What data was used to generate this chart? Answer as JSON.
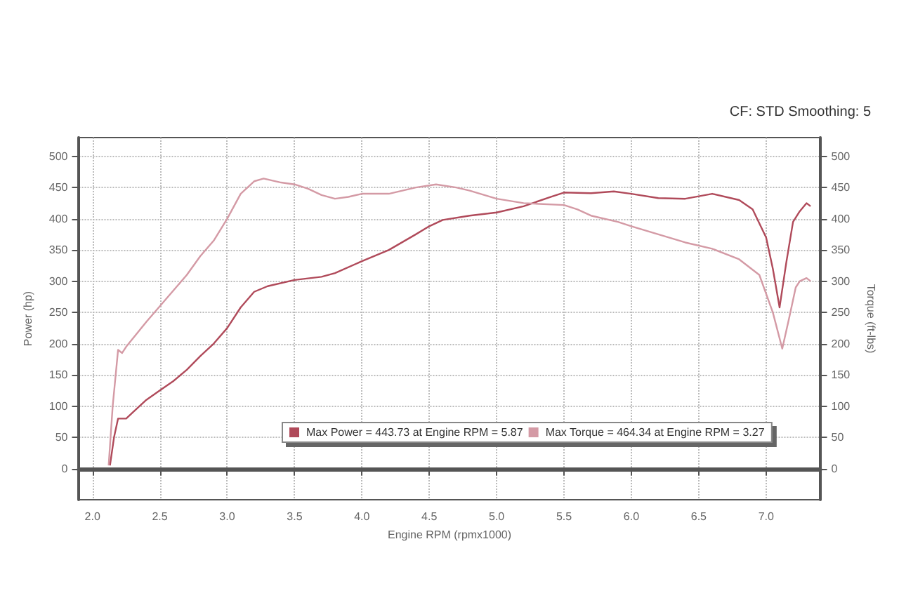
{
  "chart_data": {
    "type": "line",
    "xlabel": "Engine RPM (rpmx1000)",
    "ylabel": "Power (hp)",
    "y2label": "Torque (ft-lbs)",
    "annotations": [
      "CF: STD Smoothing: 5"
    ],
    "xlim": [
      1.9,
      7.4
    ],
    "xticks": [
      {
        "value": 2,
        "label": "2.0"
      },
      {
        "value": 2.5,
        "label": "2.5"
      },
      {
        "value": 3,
        "label": "3.0"
      },
      {
        "value": 3.5,
        "label": "3.5"
      },
      {
        "value": 4,
        "label": "4.0"
      },
      {
        "value": 4.5,
        "label": "4.5"
      },
      {
        "value": 5,
        "label": "5.0"
      },
      {
        "value": 5.5,
        "label": "5.5"
      },
      {
        "value": 6,
        "label": "6.0"
      },
      {
        "value": 6.5,
        "label": "6.5"
      },
      {
        "value": 7,
        "label": "7.0"
      }
    ],
    "ylim": [
      -50,
      530
    ],
    "yticks": [
      0,
      50,
      100,
      150,
      200,
      250,
      300,
      350,
      400,
      450,
      500
    ],
    "y2lim": [
      -50,
      530
    ],
    "y2ticks": [
      0,
      50,
      100,
      150,
      200,
      250,
      300,
      350,
      400,
      450,
      500
    ],
    "grid": true,
    "legend": "center",
    "marker": "none",
    "line_style": "solid",
    "series": [
      {
        "name": "Max Power = 443.73 at Engine RPM = 5.87",
        "color": "#b04a5a",
        "x": [
          2.13,
          2.16,
          2.19,
          2.25,
          2.3,
          2.4,
          2.5,
          2.6,
          2.7,
          2.8,
          2.9,
          3.0,
          3.1,
          3.2,
          3.3,
          3.5,
          3.7,
          3.8,
          4.0,
          4.2,
          4.4,
          4.5,
          4.6,
          4.8,
          5.0,
          5.2,
          5.4,
          5.5,
          5.7,
          5.87,
          6.0,
          6.2,
          6.4,
          6.6,
          6.8,
          6.9,
          7.0,
          7.05,
          7.1,
          7.15,
          7.2,
          7.25,
          7.3,
          7.33
        ],
        "values": [
          5,
          50,
          80,
          80,
          90,
          110,
          125,
          140,
          158,
          180,
          200,
          225,
          258,
          283,
          292,
          302,
          307,
          313,
          332,
          350,
          375,
          388,
          398,
          405,
          410,
          420,
          435,
          442,
          441,
          443.73,
          440,
          433,
          432,
          440,
          430,
          415,
          370,
          320,
          258,
          330,
          395,
          412,
          425,
          420
        ]
      },
      {
        "name": "Max Torque = 464.34 at Engine RPM = 3.27",
        "color": "#d49aa5",
        "axis": "y2",
        "x": [
          2.12,
          2.15,
          2.19,
          2.22,
          2.25,
          2.4,
          2.5,
          2.6,
          2.7,
          2.8,
          2.9,
          3.0,
          3.1,
          3.2,
          3.27,
          3.4,
          3.5,
          3.6,
          3.7,
          3.8,
          3.9,
          4.0,
          4.2,
          4.4,
          4.55,
          4.7,
          4.8,
          5.0,
          5.2,
          5.5,
          5.6,
          5.7,
          5.9,
          6.0,
          6.2,
          6.4,
          6.6,
          6.8,
          6.95,
          7.05,
          7.12,
          7.17,
          7.22,
          7.25,
          7.3,
          7.33
        ],
        "values": [
          5,
          100,
          190,
          185,
          195,
          235,
          260,
          285,
          310,
          340,
          365,
          400,
          440,
          460,
          464.34,
          458,
          455,
          448,
          438,
          432,
          435,
          440,
          440,
          450,
          455,
          450,
          445,
          432,
          425,
          422,
          415,
          405,
          395,
          388,
          375,
          362,
          352,
          335,
          310,
          250,
          192,
          240,
          290,
          300,
          305,
          300
        ]
      }
    ]
  }
}
